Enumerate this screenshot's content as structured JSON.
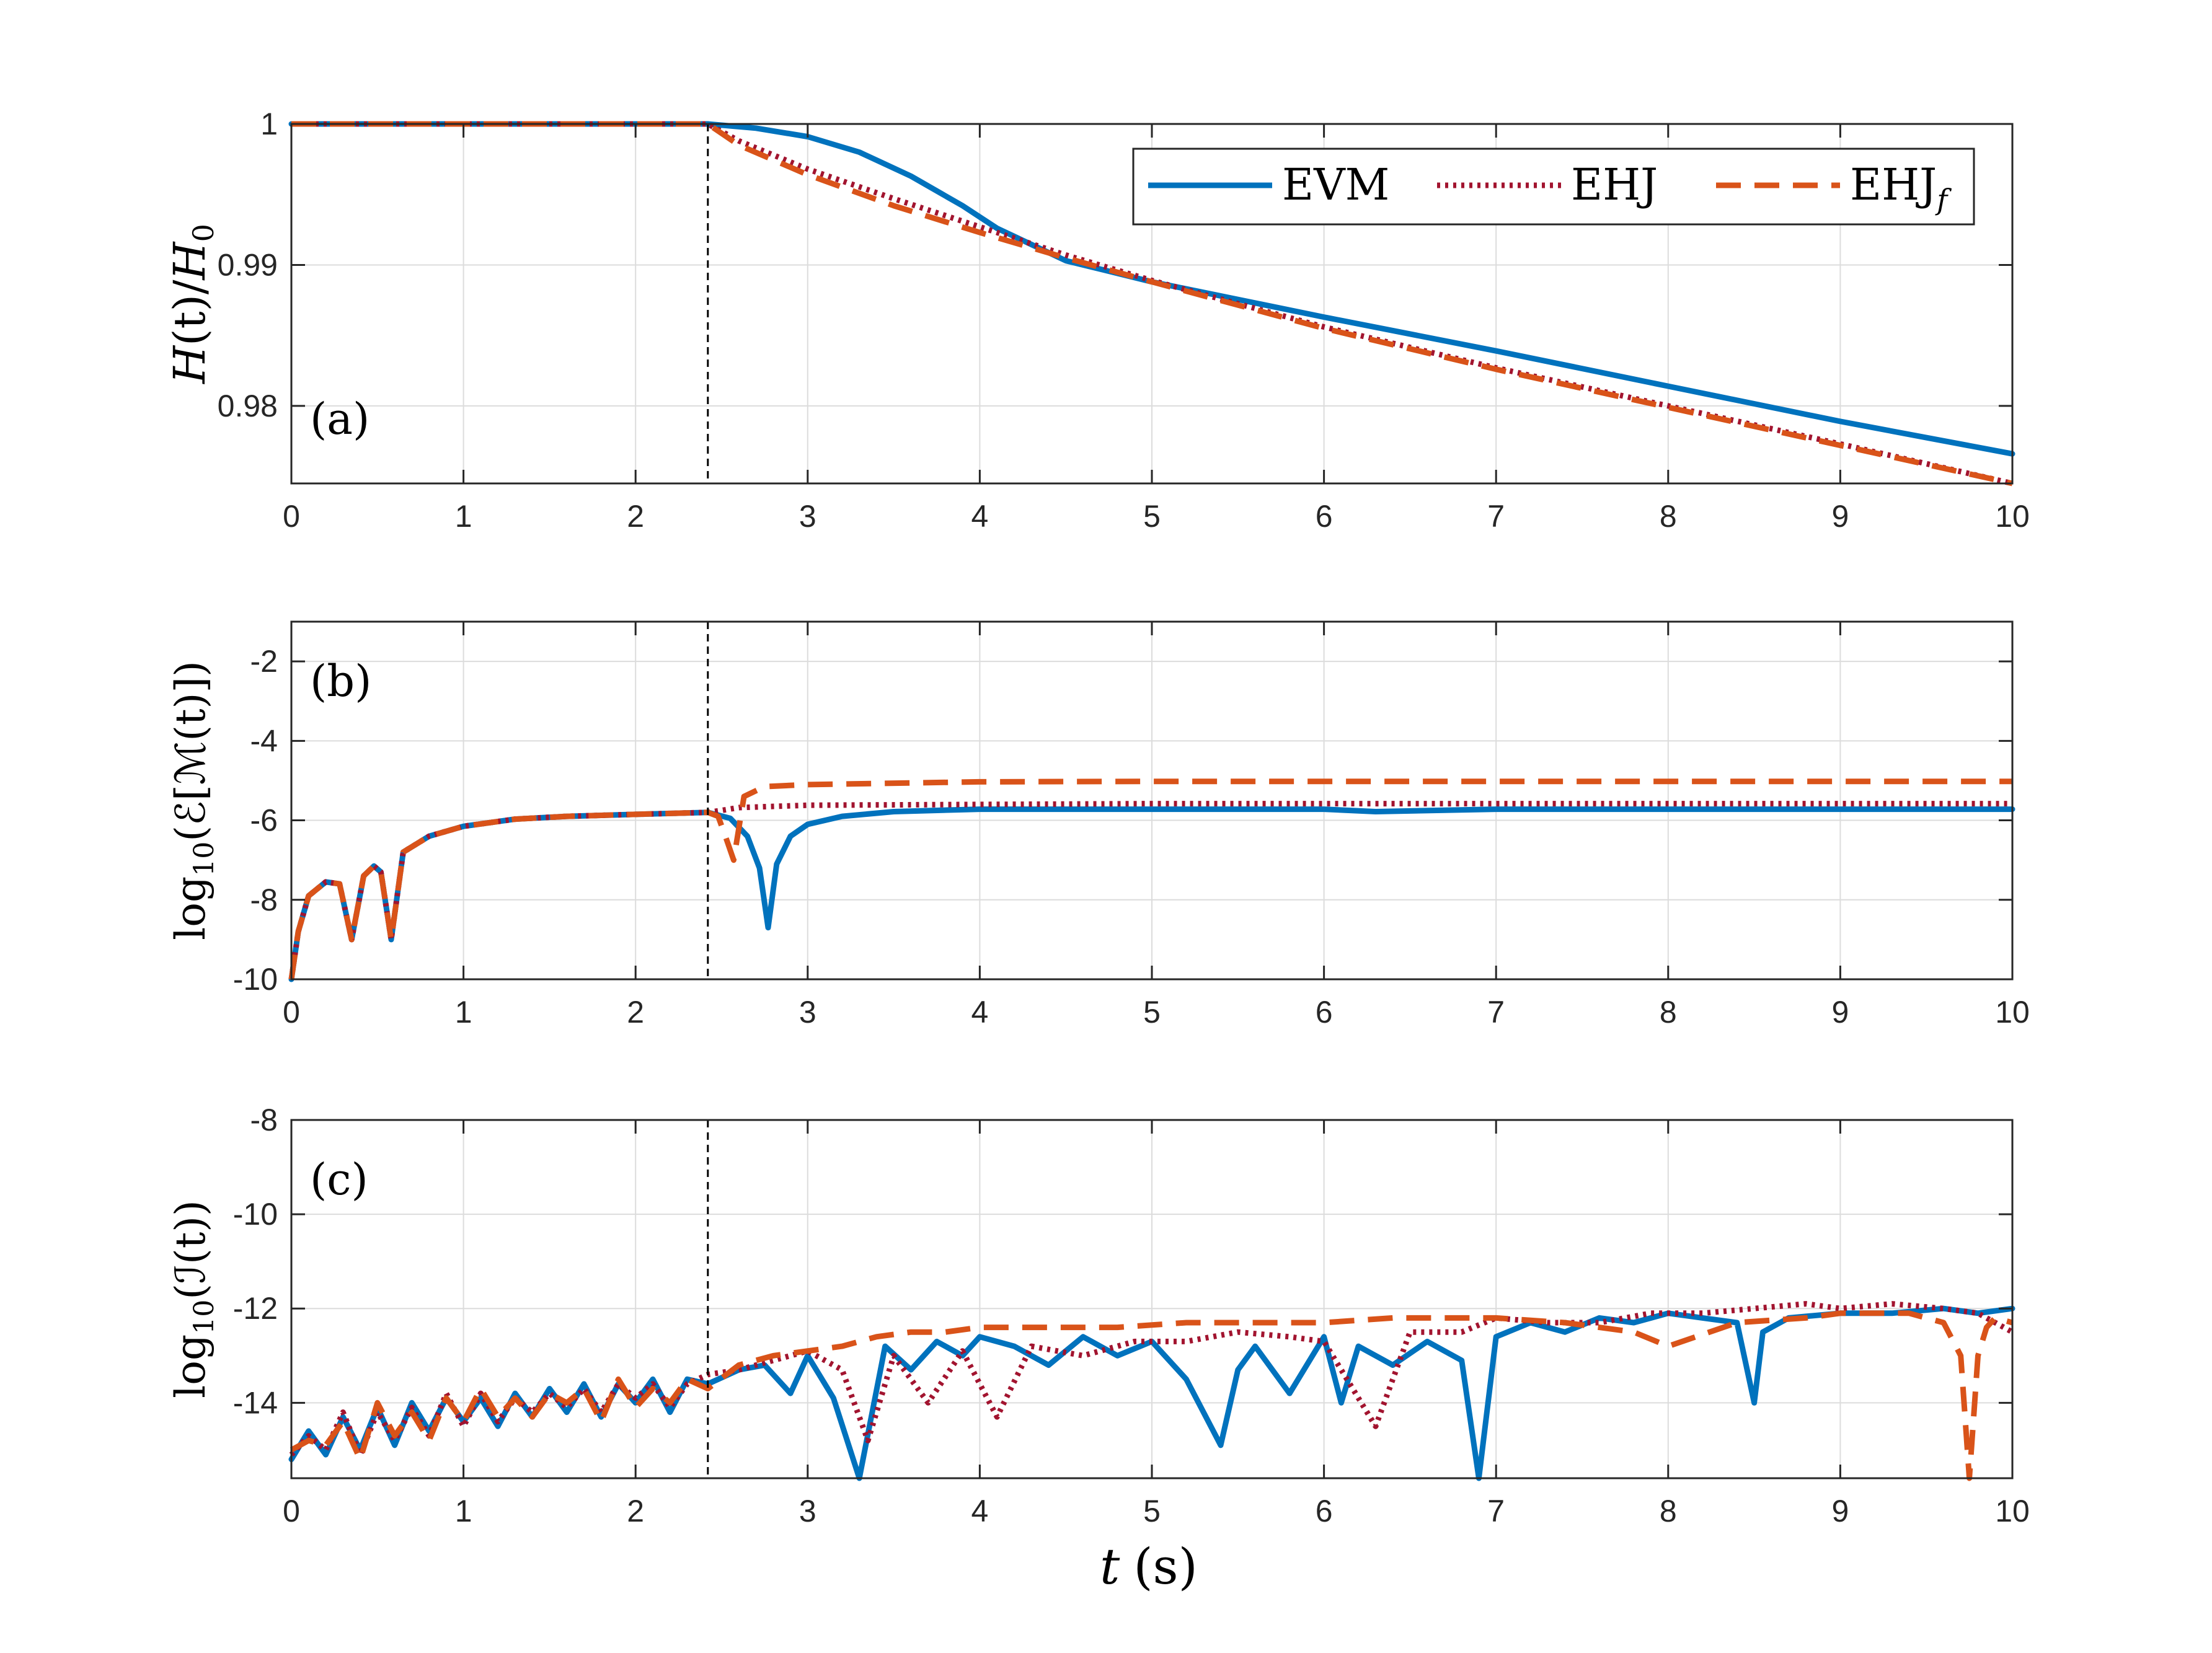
{
  "figure": {
    "xlabel": "t (s)",
    "xlabel_var": "t",
    "xlabel_unit": "(s)",
    "event_time": 2.42,
    "legend": [
      {
        "name": "EVM",
        "color": "#0072BD",
        "style": "solid"
      },
      {
        "name": "EHJ",
        "color": "#A2142F",
        "style": "dotted"
      },
      {
        "name": "EHJf",
        "base": "EHJ",
        "subscript": "f",
        "color": "#D95319",
        "style": "dashed"
      }
    ],
    "colors": {
      "evm": "#0072BD",
      "ehj": "#A2142F",
      "ehjf": "#D95319"
    }
  },
  "chart_data": [
    {
      "type": "line",
      "panel_label": "(a)",
      "ylabel": "H(t)/H0",
      "ylabel_parts": {
        "num": "H",
        "arg": "(t)/",
        "den": "H",
        "den_sub": "0"
      },
      "xlim": [
        0,
        10
      ],
      "ylim": [
        0.9745,
        1.0
      ],
      "xticks": [
        "0",
        "1",
        "2",
        "3",
        "4",
        "5",
        "6",
        "7",
        "8",
        "9",
        "10"
      ],
      "yticks": [
        {
          "v": 0.98,
          "label": "0.98"
        },
        {
          "v": 0.99,
          "label": "0.99"
        },
        {
          "v": 1.0,
          "label": "1"
        }
      ],
      "series": [
        {
          "name": "EVM",
          "x": [
            0,
            2.42,
            2.7,
            3.0,
            3.3,
            3.6,
            3.9,
            4.1,
            4.5,
            5.0,
            6.0,
            7.0,
            8.0,
            9.0,
            10.0
          ],
          "values": [
            1.0,
            1.0,
            0.9997,
            0.9991,
            0.998,
            0.9963,
            0.9942,
            0.9926,
            0.9903,
            0.9888,
            0.9863,
            0.9839,
            0.9814,
            0.9789,
            0.9766
          ]
        },
        {
          "name": "EHJ",
          "x": [
            0,
            2.42,
            2.6,
            3.0,
            3.5,
            4.0,
            4.5,
            5.0,
            6.0,
            7.0,
            8.0,
            9.0,
            10.0
          ],
          "values": [
            1.0,
            1.0,
            0.9988,
            0.9968,
            0.9947,
            0.9927,
            0.9907,
            0.9889,
            0.9856,
            0.9827,
            0.98,
            0.9773,
            0.9745
          ]
        },
        {
          "name": "EHJf",
          "x": [
            0,
            2.42,
            2.6,
            3.0,
            3.5,
            4.0,
            4.5,
            5.0,
            6.0,
            7.0,
            8.0,
            9.0,
            10.0
          ],
          "values": [
            1.0,
            1.0,
            0.9985,
            0.9964,
            0.9942,
            0.9923,
            0.9905,
            0.9888,
            0.9855,
            0.9826,
            0.9799,
            0.9772,
            0.9745
          ]
        }
      ]
    },
    {
      "type": "line",
      "panel_label": "(b)",
      "ylabel": "log10(E[M(t)])",
      "ylabel_parts": {
        "prefix": "log",
        "sub": "10",
        "body": "(ℰ[ℳ(t)])"
      },
      "xlim": [
        0,
        10
      ],
      "ylim": [
        -10,
        -1
      ],
      "xticks": [
        "0",
        "1",
        "2",
        "3",
        "4",
        "5",
        "6",
        "7",
        "8",
        "9",
        "10"
      ],
      "yticks": [
        {
          "v": -10,
          "label": "-10"
        },
        {
          "v": -8,
          "label": "-8"
        },
        {
          "v": -6,
          "label": "-6"
        },
        {
          "v": -4,
          "label": "-4"
        },
        {
          "v": -2,
          "label": "-2"
        }
      ],
      "series": [
        {
          "name": "EVM",
          "x": [
            0,
            0.04,
            0.1,
            0.2,
            0.28,
            0.35,
            0.42,
            0.48,
            0.52,
            0.58,
            0.65,
            0.8,
            1.0,
            1.3,
            1.6,
            2.0,
            2.42,
            2.55,
            2.65,
            2.72,
            2.77,
            2.82,
            2.9,
            3.0,
            3.2,
            3.5,
            4.0,
            5.0,
            6.0,
            6.3,
            7.0,
            8.0,
            9.0,
            10.0
          ],
          "values": [
            -10,
            -8.8,
            -7.9,
            -7.55,
            -7.6,
            -9.0,
            -7.4,
            -7.15,
            -7.3,
            -9.0,
            -6.8,
            -6.4,
            -6.15,
            -5.97,
            -5.9,
            -5.85,
            -5.8,
            -5.95,
            -6.4,
            -7.2,
            -8.7,
            -7.1,
            -6.4,
            -6.1,
            -5.9,
            -5.78,
            -5.72,
            -5.72,
            -5.72,
            -5.78,
            -5.72,
            -5.72,
            -5.72,
            -5.72
          ]
        },
        {
          "name": "EHJ",
          "x": [
            0,
            0.04,
            0.1,
            0.2,
            0.28,
            0.35,
            0.42,
            0.48,
            0.52,
            0.58,
            0.65,
            0.8,
            1.0,
            1.3,
            1.6,
            2.0,
            2.42,
            2.5,
            2.6,
            3.0,
            4.0,
            5.0,
            6.0,
            7.0,
            8.0,
            9.0,
            10.0
          ],
          "values": [
            -10,
            -8.8,
            -7.9,
            -7.55,
            -7.6,
            -9.0,
            -7.4,
            -7.15,
            -7.3,
            -9.0,
            -6.8,
            -6.4,
            -6.15,
            -5.97,
            -5.9,
            -5.85,
            -5.8,
            -5.75,
            -5.68,
            -5.62,
            -5.6,
            -5.58,
            -5.58,
            -5.58,
            -5.58,
            -5.58,
            -5.58
          ]
        },
        {
          "name": "EHJf",
          "x": [
            0,
            0.04,
            0.1,
            0.2,
            0.28,
            0.35,
            0.42,
            0.48,
            0.52,
            0.58,
            0.65,
            0.8,
            1.0,
            1.3,
            1.6,
            2.0,
            2.42,
            2.48,
            2.53,
            2.57,
            2.63,
            2.75,
            3.0,
            4.0,
            5.0,
            6.0,
            7.0,
            8.0,
            9.0,
            10.0
          ],
          "values": [
            -10,
            -8.8,
            -7.9,
            -7.55,
            -7.6,
            -9.0,
            -7.4,
            -7.15,
            -7.3,
            -9.0,
            -6.8,
            -6.4,
            -6.15,
            -5.97,
            -5.9,
            -5.85,
            -5.8,
            -5.9,
            -6.5,
            -7.0,
            -5.4,
            -5.15,
            -5.1,
            -5.03,
            -5.02,
            -5.02,
            -5.02,
            -5.02,
            -5.02,
            -5.02
          ]
        }
      ]
    },
    {
      "type": "line",
      "panel_label": "(c)",
      "ylabel": "log10(I(t))",
      "ylabel_parts": {
        "prefix": "log",
        "sub": "10",
        "body": "(ℐ(t))"
      },
      "xlim": [
        0,
        10
      ],
      "ylim": [
        -15.6,
        -8
      ],
      "xticks": [
        "0",
        "1",
        "2",
        "3",
        "4",
        "5",
        "6",
        "7",
        "8",
        "9",
        "10"
      ],
      "yticks": [
        {
          "v": -14,
          "label": "-14"
        },
        {
          "v": -12,
          "label": "-12"
        },
        {
          "v": -10,
          "label": "-10"
        },
        {
          "v": -8,
          "label": "-8"
        }
      ],
      "series": [
        {
          "name": "EVM",
          "x": [
            0,
            0.1,
            0.2,
            0.3,
            0.4,
            0.5,
            0.6,
            0.7,
            0.8,
            0.9,
            1.0,
            1.1,
            1.2,
            1.3,
            1.4,
            1.5,
            1.6,
            1.7,
            1.8,
            1.9,
            2.0,
            2.1,
            2.2,
            2.3,
            2.42,
            2.6,
            2.75,
            2.9,
            3.0,
            3.15,
            3.3,
            3.45,
            3.6,
            3.75,
            3.9,
            4.0,
            4.2,
            4.4,
            4.6,
            4.8,
            5.0,
            5.2,
            5.4,
            5.5,
            5.6,
            5.8,
            6.0,
            6.1,
            6.2,
            6.4,
            6.6,
            6.8,
            6.9,
            7.0,
            7.2,
            7.4,
            7.6,
            7.8,
            8.0,
            8.2,
            8.4,
            8.5,
            8.55,
            8.7,
            9.0,
            9.3,
            9.6,
            9.8,
            10.0
          ],
          "values": [
            -15.2,
            -14.6,
            -15.1,
            -14.3,
            -15.0,
            -14.1,
            -14.9,
            -14.0,
            -14.6,
            -13.9,
            -14.4,
            -13.9,
            -14.5,
            -13.8,
            -14.3,
            -13.7,
            -14.2,
            -13.6,
            -14.3,
            -13.6,
            -14.0,
            -13.5,
            -14.2,
            -13.5,
            -13.6,
            -13.3,
            -13.2,
            -13.8,
            -13.0,
            -13.9,
            -15.6,
            -12.8,
            -13.3,
            -12.7,
            -13.0,
            -12.6,
            -12.8,
            -13.2,
            -12.6,
            -13.0,
            -12.7,
            -13.5,
            -14.9,
            -13.3,
            -12.8,
            -13.8,
            -12.6,
            -14.0,
            -12.8,
            -13.2,
            -12.7,
            -13.1,
            -15.6,
            -12.6,
            -12.3,
            -12.5,
            -12.2,
            -12.3,
            -12.1,
            -12.2,
            -12.3,
            -14.0,
            -12.5,
            -12.2,
            -12.1,
            -12.1,
            -12.0,
            -12.1,
            -12.0
          ]
        },
        {
          "name": "EHJ",
          "x": [
            0,
            0.1,
            0.2,
            0.3,
            0.4,
            0.5,
            0.6,
            0.7,
            0.8,
            0.9,
            1.0,
            1.1,
            1.2,
            1.3,
            1.4,
            1.5,
            1.6,
            1.7,
            1.8,
            1.9,
            2.0,
            2.1,
            2.2,
            2.3,
            2.42,
            2.6,
            2.8,
            3.0,
            3.2,
            3.35,
            3.5,
            3.7,
            3.9,
            4.1,
            4.3,
            4.6,
            4.9,
            5.2,
            5.5,
            5.8,
            6.0,
            6.3,
            6.5,
            6.8,
            7.0,
            7.3,
            7.6,
            7.9,
            8.2,
            8.5,
            8.8,
            9.0,
            9.3,
            9.6,
            9.8,
            10.0
          ],
          "values": [
            -15.1,
            -14.7,
            -15.0,
            -14.2,
            -15.1,
            -14.2,
            -14.8,
            -14.1,
            -14.7,
            -13.8,
            -14.5,
            -13.8,
            -14.4,
            -13.9,
            -14.2,
            -13.8,
            -14.1,
            -13.7,
            -14.2,
            -13.6,
            -13.9,
            -13.6,
            -14.1,
            -13.6,
            -13.4,
            -13.3,
            -13.1,
            -12.9,
            -13.3,
            -14.8,
            -13.0,
            -14.0,
            -12.9,
            -14.3,
            -12.8,
            -13.0,
            -12.7,
            -12.7,
            -12.5,
            -12.6,
            -12.7,
            -14.5,
            -12.5,
            -12.5,
            -12.2,
            -12.3,
            -12.3,
            -12.1,
            -12.1,
            -12.0,
            -11.9,
            -12.0,
            -11.9,
            -12.0,
            -12.1,
            -12.5
          ]
        },
        {
          "name": "EHJf",
          "x": [
            0,
            0.1,
            0.2,
            0.3,
            0.4,
            0.5,
            0.6,
            0.7,
            0.8,
            0.9,
            1.0,
            1.1,
            1.2,
            1.3,
            1.4,
            1.5,
            1.6,
            1.7,
            1.8,
            1.9,
            2.0,
            2.1,
            2.2,
            2.3,
            2.42,
            2.6,
            2.8,
            3.0,
            3.2,
            3.4,
            3.6,
            3.8,
            4.0,
            4.4,
            4.8,
            5.2,
            5.6,
            6.0,
            6.4,
            6.8,
            7.0,
            7.4,
            7.8,
            8.0,
            8.4,
            8.8,
            9.0,
            9.4,
            9.6,
            9.7,
            9.75,
            9.8,
            9.85,
            9.9,
            10.0
          ],
          "values": [
            -15.0,
            -14.8,
            -14.9,
            -14.4,
            -15.2,
            -14.0,
            -14.7,
            -14.2,
            -14.8,
            -13.9,
            -14.4,
            -13.7,
            -14.3,
            -13.9,
            -14.3,
            -13.8,
            -14.0,
            -13.7,
            -14.4,
            -13.5,
            -14.1,
            -13.7,
            -14.0,
            -13.5,
            -13.7,
            -13.2,
            -13.0,
            -12.9,
            -12.8,
            -12.6,
            -12.5,
            -12.5,
            -12.4,
            -12.4,
            -12.4,
            -12.3,
            -12.3,
            -12.3,
            -12.2,
            -12.2,
            -12.2,
            -12.3,
            -12.5,
            -12.8,
            -12.3,
            -12.2,
            -12.1,
            -12.1,
            -12.3,
            -13.0,
            -15.6,
            -13.0,
            -12.4,
            -12.2,
            -12.3
          ]
        }
      ]
    }
  ]
}
